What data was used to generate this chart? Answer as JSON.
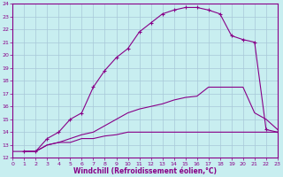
{
  "xlabel": "Windchill (Refroidissement éolien,°C)",
  "xlim": [
    0,
    23
  ],
  "ylim": [
    12,
    24
  ],
  "xticks": [
    0,
    1,
    2,
    3,
    4,
    5,
    6,
    7,
    8,
    9,
    10,
    11,
    12,
    13,
    14,
    15,
    16,
    17,
    18,
    19,
    20,
    21,
    22,
    23
  ],
  "yticks": [
    12,
    13,
    14,
    15,
    16,
    17,
    18,
    19,
    20,
    21,
    22,
    23,
    24
  ],
  "bg_color": "#c8eef0",
  "grid_color": "#a8c8d8",
  "line_color": "#880088",
  "c1_x": [
    1,
    2,
    3,
    4,
    5,
    6,
    7,
    8,
    9,
    10,
    11,
    12,
    13,
    14,
    15,
    16,
    17,
    18,
    19,
    20,
    21,
    22,
    23
  ],
  "c1_y": [
    12.5,
    12.5,
    13.5,
    14.0,
    15.0,
    15.5,
    17.5,
    18.8,
    19.8,
    20.5,
    21.8,
    22.5,
    23.2,
    23.5,
    23.7,
    23.7,
    23.5,
    23.2,
    21.5,
    21.2,
    21.0,
    14.2,
    14.0
  ],
  "c2_x": [
    1,
    2,
    3,
    4,
    5,
    6,
    7,
    8,
    9,
    10,
    11,
    12,
    13,
    14,
    15,
    16,
    17,
    18,
    19,
    20,
    21,
    22,
    23
  ],
  "c2_y": [
    12.5,
    12.5,
    13.0,
    13.2,
    13.5,
    13.8,
    14.0,
    14.5,
    15.0,
    15.5,
    15.8,
    16.0,
    16.2,
    16.5,
    16.7,
    16.8,
    17.5,
    17.5,
    17.5,
    17.5,
    15.5,
    15.0,
    14.2
  ],
  "c3_x": [
    0,
    1,
    2,
    3,
    4,
    5,
    6,
    7,
    8,
    9,
    10,
    11,
    12,
    13,
    14,
    15,
    16,
    17,
    18,
    19,
    20,
    21,
    22,
    23
  ],
  "c3_y": [
    12.5,
    12.5,
    12.5,
    13.0,
    13.2,
    13.2,
    13.5,
    13.5,
    13.7,
    13.8,
    14.0,
    14.0,
    14.0,
    14.0,
    14.0,
    14.0,
    14.0,
    14.0,
    14.0,
    14.0,
    14.0,
    14.0,
    14.0,
    14.0
  ]
}
